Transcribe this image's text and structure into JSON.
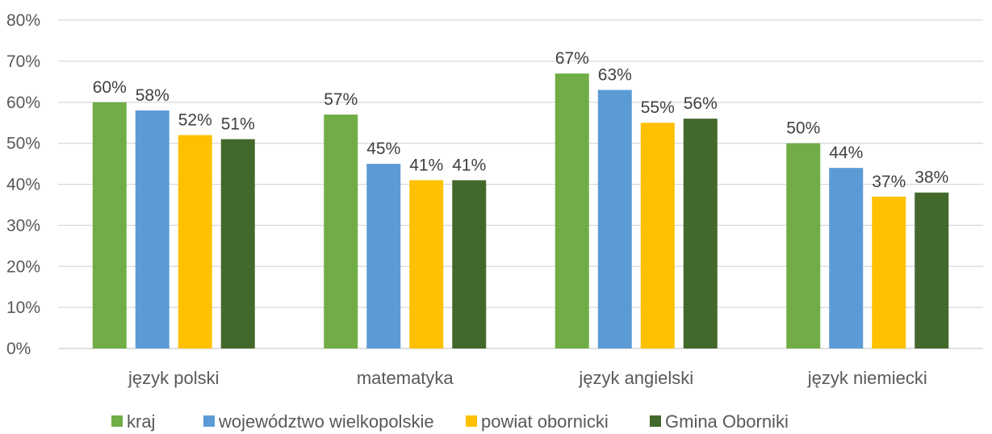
{
  "chart_data": {
    "type": "bar",
    "title": "",
    "xlabel": "",
    "ylabel": "",
    "ylim": [
      0,
      80
    ],
    "y_ticks": [
      "0%",
      "10%",
      "20%",
      "30%",
      "40%",
      "50%",
      "60%",
      "70%",
      "80%"
    ],
    "grid": true,
    "legend_position": "bottom",
    "categories": [
      "język polski",
      "matematyka",
      "język angielski",
      "język niemiecki"
    ],
    "series": [
      {
        "name": "kraj",
        "color": "#70AD47",
        "values": [
          60,
          57,
          67,
          50
        ],
        "labels": [
          "60%",
          "57%",
          "67%",
          "50%"
        ]
      },
      {
        "name": "województwo wielkopolskie",
        "color": "#5B9BD5",
        "values": [
          58,
          45,
          63,
          44
        ],
        "labels": [
          "58%",
          "45%",
          "63%",
          "44%"
        ]
      },
      {
        "name": "powiat obornicki",
        "color": "#FFC000",
        "values": [
          52,
          41,
          55,
          37
        ],
        "labels": [
          "52%",
          "41%",
          "55%",
          "37%"
        ]
      },
      {
        "name": "Gmina Oborniki",
        "color": "#43682B",
        "values": [
          51,
          41,
          56,
          38
        ],
        "labels": [
          "51%",
          "41%",
          "56%",
          "38%"
        ]
      }
    ]
  }
}
